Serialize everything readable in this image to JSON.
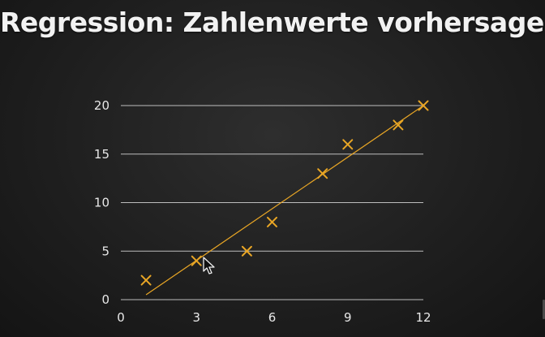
{
  "slide": {
    "title": "Regression: Zahlenwerte vorhersagen"
  },
  "colors": {
    "background": "#1f1f1f",
    "title": "#f2f2f2",
    "grid": "#d8d8d8",
    "axis_text": "#e8e8e8",
    "marker": "#e9a625",
    "regression_line": "#e9a625"
  },
  "chart_data": {
    "type": "scatter",
    "title": "",
    "xlabel": "",
    "ylabel": "",
    "xlim": [
      0,
      12
    ],
    "ylim": [
      0,
      20
    ],
    "x_ticks": [
      "0",
      "3",
      "6",
      "9",
      "12"
    ],
    "y_ticks": [
      "0",
      "5",
      "10",
      "15",
      "20"
    ],
    "grid": "horizontal",
    "legend": "none",
    "marker": "x",
    "series": [
      {
        "x": [
          1,
          3,
          5,
          6,
          8,
          9,
          11,
          12
        ],
        "y": [
          2,
          4,
          5,
          8,
          13,
          16,
          18,
          20
        ]
      }
    ],
    "fit_line": {
      "x": [
        1,
        12
      ],
      "y": [
        0.5,
        20
      ]
    }
  }
}
